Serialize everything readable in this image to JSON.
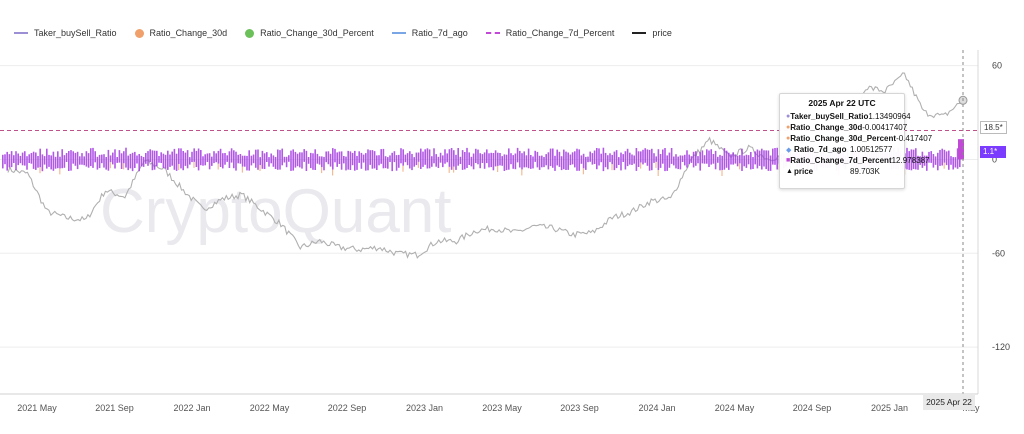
{
  "legend": [
    {
      "name": "Taker_buySell_Ratio",
      "color": "#9d8fd4",
      "style": "line"
    },
    {
      "name": "Ratio_Change_30d",
      "color": "#f0a06a",
      "style": "dot"
    },
    {
      "name": "Ratio_Change_30d_Percent",
      "color": "#6cc05a",
      "style": "dot"
    },
    {
      "name": "Ratio_7d_ago",
      "color": "#7aa6e6",
      "style": "line"
    },
    {
      "name": "Ratio_Change_7d_Percent",
      "color": "#c04ad6",
      "style": "dash"
    },
    {
      "name": "price",
      "color": "#222222",
      "style": "line"
    }
  ],
  "watermark": "CryptoQuant",
  "tooltip": {
    "title": "2025 Apr 22 UTC",
    "rows": [
      {
        "name": "Taker_buySell_Ratio",
        "value": "1.13490964",
        "mark": "●",
        "color": "#9d8fd4"
      },
      {
        "name": "Ratio_Change_30d",
        "value": "-0.00417407",
        "mark": "●",
        "color": "#f0a06a"
      },
      {
        "name": "Ratio_Change_30d_Percent",
        "value": "-0.417407",
        "mark": "●",
        "color": "#f0a06a"
      },
      {
        "name": "Ratio_7d_ago",
        "value": "1.00512577",
        "mark": "◆",
        "color": "#6a9be8"
      },
      {
        "name": "Ratio_Change_7d_Percent",
        "value": "12.978387",
        "mark": "■",
        "color": "#c04ad6"
      },
      {
        "name": "price",
        "value": "89.703K",
        "mark": "▲",
        "color": "#111111"
      }
    ]
  },
  "badges": {
    "dash_value": "18.5*",
    "main_value": "1.1*"
  },
  "cursor_label": "2025 Apr 22",
  "chart_data": {
    "type": "line",
    "x_ticks": [
      "2021 May",
      "2021 Sep",
      "2022 Jan",
      "2022 May",
      "2022 Sep",
      "2023 Jan",
      "2023 May",
      "2023 Sep",
      "2024 Jan",
      "2024 May",
      "2024 Sep",
      "2025 Jan",
      "May"
    ],
    "y_ticks": [
      "60",
      "0",
      "-60",
      "-120"
    ],
    "y_tick_values": [
      60,
      0,
      -60,
      -120
    ],
    "ylim": [
      -150,
      70
    ],
    "ratio_change_7d_band": [
      -5,
      5
    ],
    "dashed_reference_value": 18.5,
    "price_series_k": [
      [
        "2021 Mar",
        57
      ],
      [
        "2021 Apr",
        55
      ],
      [
        "2021 May",
        37
      ],
      [
        "2021 Jun",
        34
      ],
      [
        "2021 Jul",
        33
      ],
      [
        "2021 Aug",
        47
      ],
      [
        "2021 Sep",
        44
      ],
      [
        "2021 Oct",
        61
      ],
      [
        "2021 Nov",
        57
      ],
      [
        "2021 Dec",
        47
      ],
      [
        "2022 Jan",
        38
      ],
      [
        "2022 Feb",
        43
      ],
      [
        "2022 Mar",
        45
      ],
      [
        "2022 Apr",
        38
      ],
      [
        "2022 May",
        31
      ],
      [
        "2022 Jun",
        20
      ],
      [
        "2022 Jul",
        23
      ],
      [
        "2022 Aug",
        20
      ],
      [
        "2022 Sep",
        19
      ],
      [
        "2022 Oct",
        20
      ],
      [
        "2022 Nov",
        17
      ],
      [
        "2022 Dec",
        16.5
      ],
      [
        "2023 Jan",
        23
      ],
      [
        "2023 Feb",
        23
      ],
      [
        "2023 Mar",
        28
      ],
      [
        "2023 Apr",
        29
      ],
      [
        "2023 May",
        27
      ],
      [
        "2023 Jun",
        30
      ],
      [
        "2023 Jul",
        29
      ],
      [
        "2023 Aug",
        26
      ],
      [
        "2023 Sep",
        27
      ],
      [
        "2023 Oct",
        34
      ],
      [
        "2023 Nov",
        37
      ],
      [
        "2023 Dec",
        42
      ],
      [
        "2024 Jan",
        43
      ],
      [
        "2024 Feb",
        61
      ],
      [
        "2024 Mar",
        71
      ],
      [
        "2024 Apr",
        63
      ],
      [
        "2024 May",
        67
      ],
      [
        "2024 Jun",
        62
      ],
      [
        "2024 Jul",
        64
      ],
      [
        "2024 Aug",
        59
      ],
      [
        "2024 Sep",
        63
      ],
      [
        "2024 Oct",
        70
      ],
      [
        "2024 Nov",
        96
      ],
      [
        "2024 Dec",
        94
      ],
      [
        "2025 Jan",
        102
      ],
      [
        "2025 Feb",
        84
      ],
      [
        "2025 Mar",
        82
      ],
      [
        "2025 Apr",
        89.7
      ]
    ]
  }
}
